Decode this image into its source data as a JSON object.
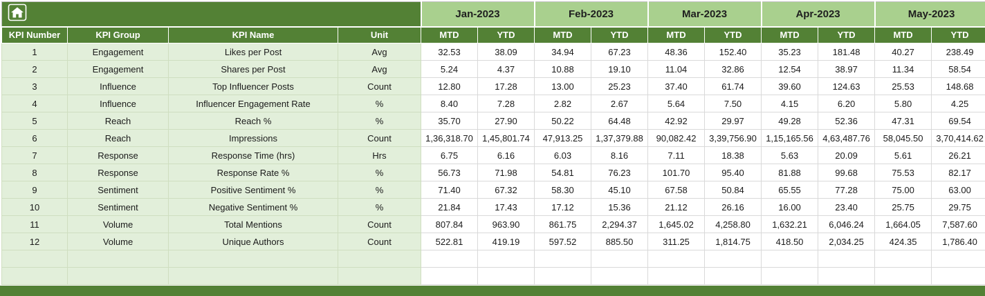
{
  "months": [
    "Jan-2023",
    "Feb-2023",
    "Mar-2023",
    "Apr-2023",
    "May-2023"
  ],
  "sub_headers": [
    "MTD",
    "YTD"
  ],
  "left_headers": [
    "KPI Number",
    "KPI Group",
    "KPI Name",
    "Unit"
  ],
  "rows": [
    {
      "num": "1",
      "group": "Engagement",
      "name": "Likes per Post",
      "unit": "Avg",
      "values": [
        "32.53",
        "38.09",
        "34.94",
        "67.23",
        "48.36",
        "152.40",
        "35.23",
        "181.48",
        "40.27",
        "238.49"
      ]
    },
    {
      "num": "2",
      "group": "Engagement",
      "name": "Shares per Post",
      "unit": "Avg",
      "values": [
        "5.24",
        "4.37",
        "10.88",
        "19.10",
        "11.04",
        "32.86",
        "12.54",
        "38.97",
        "11.34",
        "58.54"
      ]
    },
    {
      "num": "3",
      "group": "Influence",
      "name": "Top Influencer Posts",
      "unit": "Count",
      "values": [
        "12.80",
        "17.28",
        "13.00",
        "25.23",
        "37.40",
        "61.74",
        "39.60",
        "124.63",
        "25.53",
        "148.68"
      ]
    },
    {
      "num": "4",
      "group": "Influence",
      "name": "Influencer Engagement Rate",
      "unit": "%",
      "values": [
        "8.40",
        "7.28",
        "2.82",
        "2.67",
        "5.64",
        "7.50",
        "4.15",
        "6.20",
        "5.80",
        "4.25"
      ]
    },
    {
      "num": "5",
      "group": "Reach",
      "name": "Reach %",
      "unit": "%",
      "values": [
        "35.70",
        "27.90",
        "50.22",
        "64.48",
        "42.92",
        "29.97",
        "49.28",
        "52.36",
        "47.31",
        "69.54"
      ]
    },
    {
      "num": "6",
      "group": "Reach",
      "name": "Impressions",
      "unit": "Count",
      "values": [
        "1,36,318.70",
        "1,45,801.74",
        "47,913.25",
        "1,37,379.88",
        "90,082.42",
        "3,39,756.90",
        "1,15,165.56",
        "4,63,487.76",
        "58,045.50",
        "3,70,414.62"
      ]
    },
    {
      "num": "7",
      "group": "Response",
      "name": "Response Time (hrs)",
      "unit": "Hrs",
      "values": [
        "6.75",
        "6.16",
        "6.03",
        "8.16",
        "7.11",
        "18.38",
        "5.63",
        "20.09",
        "5.61",
        "26.21"
      ]
    },
    {
      "num": "8",
      "group": "Response",
      "name": "Response Rate %",
      "unit": "%",
      "values": [
        "56.73",
        "71.98",
        "54.81",
        "76.23",
        "101.70",
        "95.40",
        "81.88",
        "99.68",
        "75.53",
        "82.17"
      ]
    },
    {
      "num": "9",
      "group": "Sentiment",
      "name": "Positive Sentiment %",
      "unit": "%",
      "values": [
        "71.40",
        "67.32",
        "58.30",
        "45.10",
        "67.58",
        "50.84",
        "65.55",
        "77.28",
        "75.00",
        "63.00"
      ]
    },
    {
      "num": "10",
      "group": "Sentiment",
      "name": "Negative Sentiment %",
      "unit": "%",
      "values": [
        "21.84",
        "17.43",
        "17.12",
        "15.36",
        "21.12",
        "26.16",
        "16.00",
        "23.40",
        "25.75",
        "29.75"
      ]
    },
    {
      "num": "11",
      "group": "Volume",
      "name": "Total Mentions",
      "unit": "Count",
      "values": [
        "807.84",
        "963.90",
        "861.75",
        "2,294.37",
        "1,645.02",
        "4,258.80",
        "1,632.21",
        "6,046.24",
        "1,664.05",
        "7,587.60"
      ]
    },
    {
      "num": "12",
      "group": "Volume",
      "name": "Unique Authors",
      "unit": "Count",
      "values": [
        "522.81",
        "419.19",
        "597.52",
        "885.50",
        "311.25",
        "1,814.75",
        "418.50",
        "2,034.25",
        "424.35",
        "1,786.40"
      ]
    }
  ],
  "empty_row_count": 2,
  "colors": {
    "dark-green": "#538135",
    "month-green": "#A9D08E",
    "tint-green": "#E2EFDA"
  }
}
